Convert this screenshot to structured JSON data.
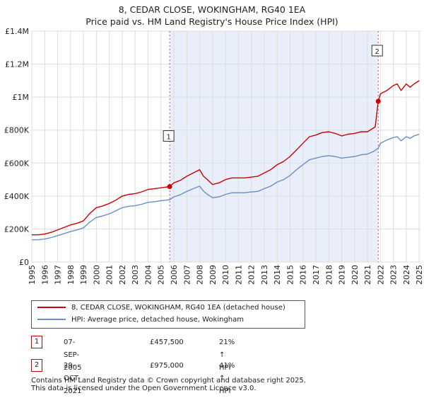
{
  "chart_data": {
    "type": "line",
    "title": "8, CEDAR CLOSE, WOKINGHAM, RG40 1EA",
    "subtitle": "Price paid vs. HM Land Registry's House Price Index (HPI)",
    "xlabel": "",
    "ylabel": "",
    "xlim": [
      1995,
      2025.1
    ],
    "ylim": [
      0,
      1400000
    ],
    "yticks": [
      {
        "value": 0,
        "label": "£0"
      },
      {
        "value": 200000,
        "label": "£200K"
      },
      {
        "value": 400000,
        "label": "£400K"
      },
      {
        "value": 600000,
        "label": "£600K"
      },
      {
        "value": 800000,
        "label": "£800K"
      },
      {
        "value": 1000000,
        "label": "£1M"
      },
      {
        "value": 1200000,
        "label": "£1.2M"
      },
      {
        "value": 1400000,
        "label": "£1.4M"
      }
    ],
    "xticks": [
      "1995",
      "1996",
      "1997",
      "1998",
      "1999",
      "2000",
      "2001",
      "2002",
      "2003",
      "2004",
      "2005",
      "2006",
      "2007",
      "2008",
      "2009",
      "2010",
      "2011",
      "2012",
      "2013",
      "2014",
      "2015",
      "2016",
      "2017",
      "2018",
      "2019",
      "2020",
      "2021",
      "2022",
      "2023",
      "2024",
      "2025"
    ],
    "shaded_region": [
      2005.68,
      2021.83
    ],
    "colors": {
      "property": "#cc0000",
      "hpi": "#6a8fc8",
      "shade": "#e8eefa"
    },
    "series": [
      {
        "name": "8, CEDAR CLOSE, WOKINGHAM, RG40 1EA (detached house)",
        "color": "#cc0000",
        "x": [
          1995,
          1995.5,
          1996,
          1996.5,
          1997,
          1997.5,
          1998,
          1998.5,
          1999,
          1999.5,
          2000,
          2000.5,
          2001,
          2001.5,
          2002,
          2002.5,
          2003,
          2003.5,
          2004,
          2004.5,
          2005,
          2005.68,
          2006,
          2006.5,
          2007,
          2007.5,
          2008,
          2008.3,
          2008.6,
          2009,
          2009.5,
          2010,
          2010.5,
          2011,
          2011.5,
          2012,
          2012.5,
          2013,
          2013.5,
          2014,
          2014.5,
          2015,
          2015.5,
          2016,
          2016.5,
          2017,
          2017.5,
          2018,
          2018.5,
          2019,
          2019.5,
          2020,
          2020.5,
          2021,
          2021.6,
          2021.83,
          2022,
          2022.5,
          2023,
          2023.3,
          2023.6,
          2024,
          2024.3,
          2024.6,
          2025
        ],
        "values": [
          165000,
          165000,
          170000,
          180000,
          195000,
          210000,
          225000,
          235000,
          250000,
          295000,
          330000,
          340000,
          355000,
          375000,
          400000,
          410000,
          415000,
          425000,
          440000,
          445000,
          450000,
          457500,
          480000,
          495000,
          520000,
          540000,
          560000,
          520000,
          500000,
          470000,
          480000,
          500000,
          510000,
          510000,
          510000,
          515000,
          520000,
          540000,
          560000,
          590000,
          610000,
          640000,
          680000,
          720000,
          760000,
          770000,
          785000,
          790000,
          780000,
          765000,
          775000,
          780000,
          790000,
          790000,
          820000,
          975000,
          1020000,
          1040000,
          1070000,
          1080000,
          1040000,
          1080000,
          1060000,
          1080000,
          1100000
        ]
      },
      {
        "name": "HPI: Average price, detached house, Wokingham",
        "color": "#6a8fc8",
        "x": [
          1995,
          1995.5,
          1996,
          1996.5,
          1997,
          1997.5,
          1998,
          1998.5,
          1999,
          1999.5,
          2000,
          2000.5,
          2001,
          2001.5,
          2002,
          2002.5,
          2003,
          2003.5,
          2004,
          2004.5,
          2005,
          2005.68,
          2006,
          2006.5,
          2007,
          2007.5,
          2008,
          2008.3,
          2008.6,
          2009,
          2009.5,
          2010,
          2010.5,
          2011,
          2011.5,
          2012,
          2012.5,
          2013,
          2013.5,
          2014,
          2014.5,
          2015,
          2015.5,
          2016,
          2016.5,
          2017,
          2017.5,
          2018,
          2018.5,
          2019,
          2019.5,
          2020,
          2020.5,
          2021,
          2021.5,
          2021.83,
          2022,
          2022.5,
          2023,
          2023.3,
          2023.6,
          2024,
          2024.3,
          2024.6,
          2025
        ],
        "values": [
          135000,
          135000,
          140000,
          148000,
          160000,
          172000,
          185000,
          195000,
          207000,
          243000,
          270000,
          280000,
          292000,
          310000,
          330000,
          338000,
          342000,
          350000,
          362000,
          366000,
          372000,
          378000,
          395000,
          408000,
          428000,
          445000,
          460000,
          430000,
          410000,
          390000,
          395000,
          410000,
          420000,
          420000,
          420000,
          425000,
          428000,
          445000,
          460000,
          485000,
          500000,
          525000,
          560000,
          590000,
          620000,
          630000,
          640000,
          645000,
          640000,
          630000,
          635000,
          640000,
          650000,
          655000,
          672000,
          690000,
          720000,
          740000,
          755000,
          760000,
          735000,
          760000,
          750000,
          765000,
          775000
        ]
      }
    ],
    "annotations": [
      {
        "label": "1",
        "x": 2005.68,
        "y": 457500
      },
      {
        "label": "2",
        "x": 2021.83,
        "y": 975000
      }
    ]
  },
  "legend": {
    "property_label": "8, CEDAR CLOSE, WOKINGHAM, RG40 1EA (detached house)",
    "hpi_label": "HPI: Average price, detached house, Wokingham"
  },
  "transactions": [
    {
      "num": "1",
      "date": "07-SEP-2005",
      "price": "£457,500",
      "hpi": "21% ↑ HPI"
    },
    {
      "num": "2",
      "date": "29-OCT-2021",
      "price": "£975,000",
      "hpi": "41% ↑ HPI"
    }
  ],
  "footer": {
    "line1": "Contains HM Land Registry data © Crown copyright and database right 2025.",
    "line2": "This data is licensed under the Open Government Licence v3.0."
  }
}
